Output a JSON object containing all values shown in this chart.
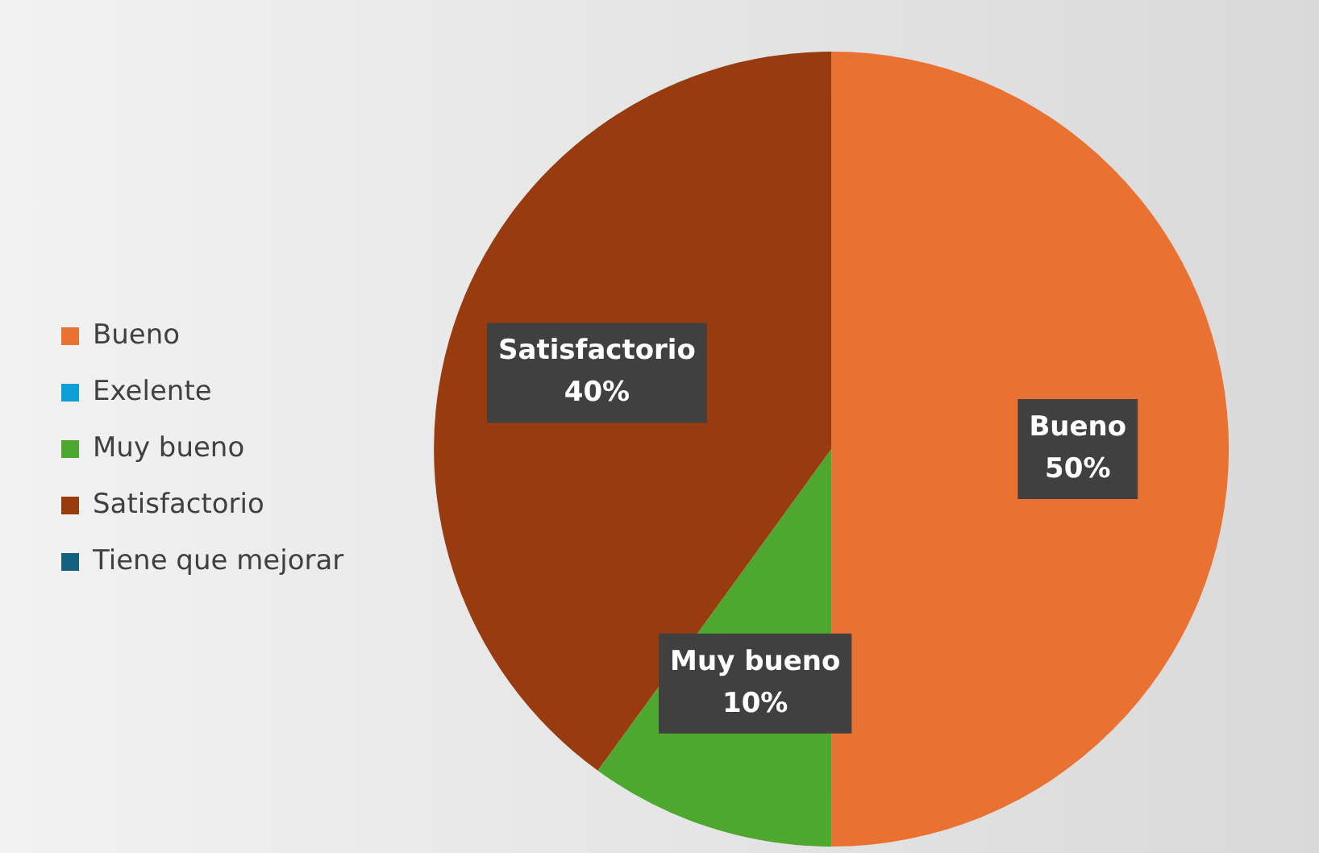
{
  "chart_data": {
    "type": "pie",
    "categories": [
      "Bueno",
      "Exelente",
      "Muy bueno",
      "Satisfactorio",
      "Tiene que mejorar"
    ],
    "values": [
      50,
      0,
      10,
      40,
      0
    ],
    "colors": [
      "#e97132",
      "#0f9ed5",
      "#4ea72e",
      "#983c10",
      "#14607e"
    ],
    "value_labels": [
      "50%",
      null,
      "10%",
      "40%",
      null
    ],
    "legend": "left"
  }
}
